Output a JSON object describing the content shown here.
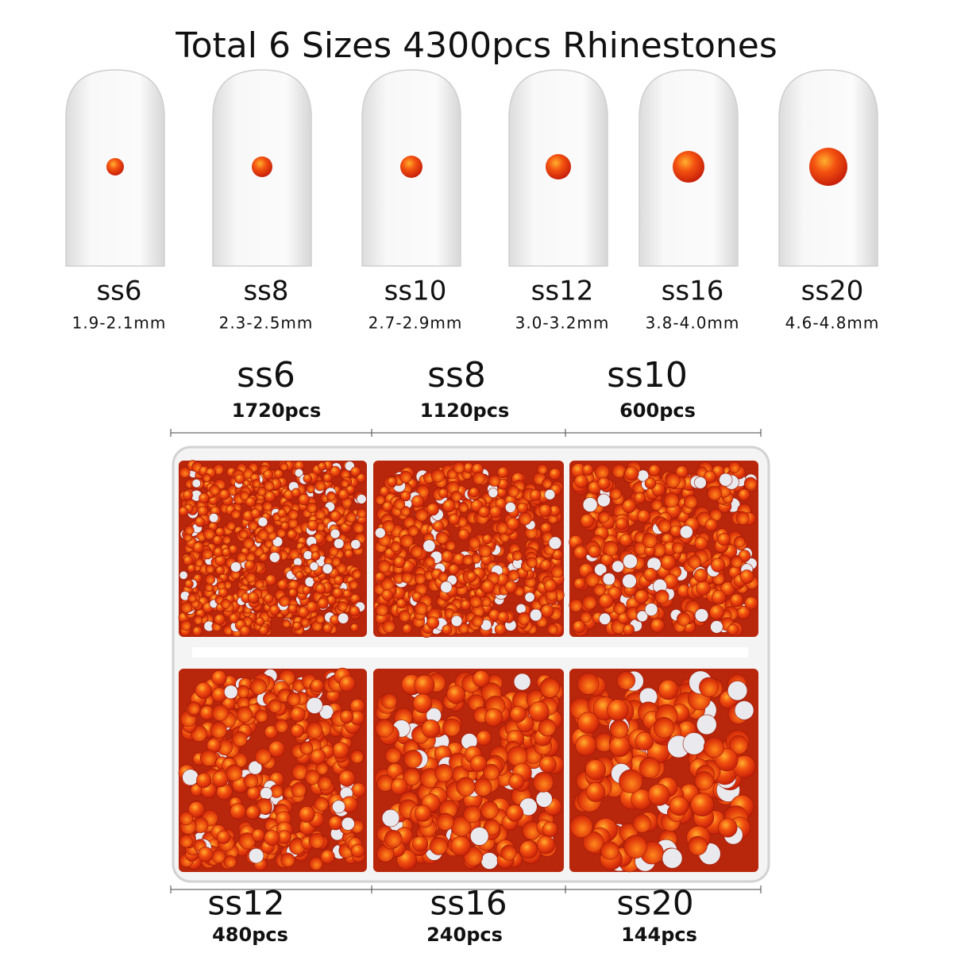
{
  "title": "Total 6 Sizes 4300pcs Rhinestones",
  "nails": [
    {
      "size": "ss6",
      "range": "1.9-2.1mm"
    },
    {
      "size": "ss8",
      "range": "2.3-2.5mm"
    },
    {
      "size": "ss10",
      "range": "2.7-2.9mm"
    },
    {
      "size": "ss12",
      "range": "3.0-3.2mm"
    },
    {
      "size": "ss16",
      "range": "3.8-4.0mm"
    },
    {
      "size": "ss20",
      "range": "4.6-4.8mm"
    }
  ],
  "box_top": [
    {
      "size": "ss6",
      "count": "1720pcs"
    },
    {
      "size": "ss8",
      "count": "1120pcs"
    },
    {
      "size": "ss10",
      "count": "600pcs"
    }
  ],
  "box_bottom": [
    {
      "size": "ss12",
      "count": "480pcs"
    },
    {
      "size": "ss16",
      "count": "240pcs"
    },
    {
      "size": "ss20",
      "count": "144pcs"
    }
  ]
}
